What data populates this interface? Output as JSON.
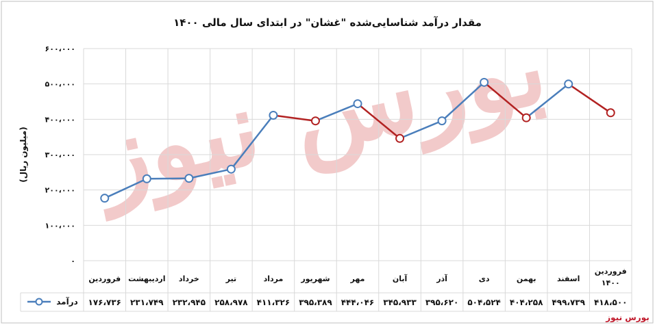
{
  "chart_data": {
    "type": "line",
    "title": "مقدار درآمد شناسایی‌شده \"غشان\" در ابتدای سال مالی ۱۴۰۰",
    "ylabel": "(میلیون ریال)",
    "xlabel": "",
    "ylim": [
      0,
      600000
    ],
    "yticks": [
      0,
      100000,
      200000,
      300000,
      400000,
      500000,
      600000
    ],
    "ytick_labels": [
      "۰",
      "۱۰۰،۰۰۰",
      "۲۰۰،۰۰۰",
      "۳۰۰،۰۰۰",
      "۴۰۰،۰۰۰",
      "۵۰۰،۰۰۰",
      "۶۰۰،۰۰۰"
    ],
    "grid": true,
    "categories": [
      "فروردین",
      "اردیبهشت",
      "خرداد",
      "تیر",
      "مرداد",
      "شهریور",
      "مهر",
      "آبان",
      "آذر",
      "دی",
      "بهمن",
      "اسفند",
      "فروردین ۱۴۰۰"
    ],
    "series": [
      {
        "name": "درآمد",
        "values": [
          176736,
          231749,
          232945,
          258978,
          411326,
          395389,
          444046,
          345933,
          395620,
          504524,
          404258,
          499739,
          418500
        ],
        "value_labels": [
          "۱۷۶،۷۳۶",
          "۲۳۱،۷۴۹",
          "۲۳۲،۹۴۵",
          "۲۵۸،۹۷۸",
          "۴۱۱،۳۲۶",
          "۳۹۵،۳۸۹",
          "۴۴۴،۰۴۶",
          "۳۴۵،۹۳۳",
          "۳۹۵،۶۲۰",
          "۵۰۴،۵۲۴",
          "۴۰۴،۲۵۸",
          "۴۹۹،۷۳۹",
          "۴۱۸،۵۰۰"
        ]
      }
    ],
    "table_below": true,
    "colors": {
      "up": "#4a7ebb",
      "down": "#b22222",
      "grid": "#d9d9d9"
    }
  },
  "watermark": "بورس نیوز",
  "brand": "بورس نیوز"
}
